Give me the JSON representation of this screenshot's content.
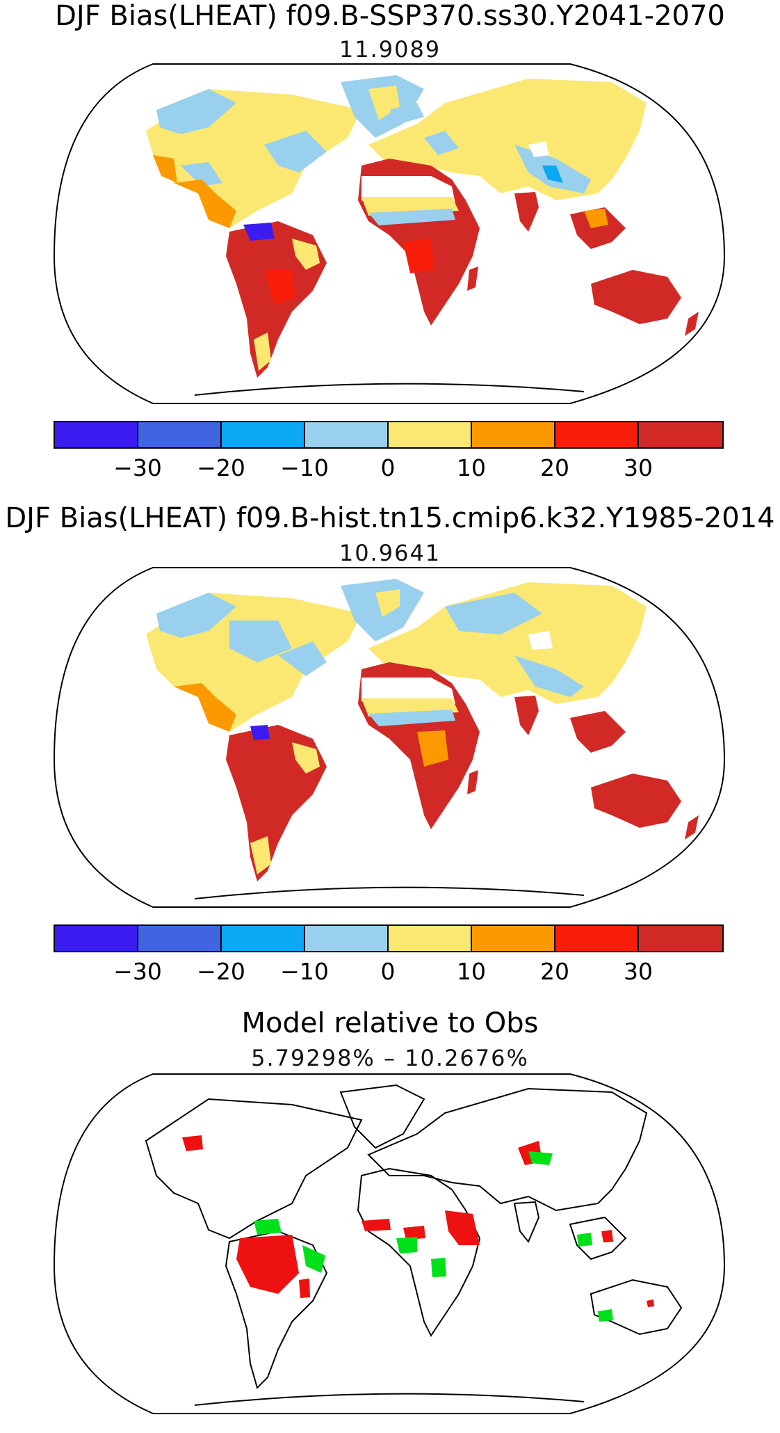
{
  "panels": [
    {
      "title": "DJF Bias(LHEAT) f09.B-SSP370.ss30.Y2041-2070",
      "subtitle": "11.9089"
    },
    {
      "title": "DJF Bias(LHEAT) f09.B-hist.tn15.cmip6.k32.Y1985-2014",
      "subtitle": "10.9641"
    },
    {
      "title": "Model relative to Obs",
      "subtitle": "5.79298% – 10.2676%"
    }
  ],
  "colorbar": {
    "colors": [
      "#3a1cf0",
      "#3f66e0",
      "#0aa8f5",
      "#98d0ee",
      "#fbe872",
      "#fa9a00",
      "#f81e0a",
      "#d12a26"
    ],
    "tick_labels": [
      "−30",
      "−20",
      "−10",
      "0",
      "10",
      "20",
      "30"
    ]
  },
  "colors": {
    "land_outline": "#000000",
    "better": "#00e01a",
    "worse": "#ee1111"
  }
}
